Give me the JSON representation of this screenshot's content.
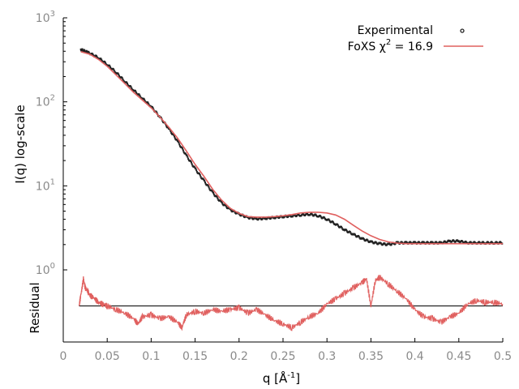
{
  "chart_data": {
    "type": "line",
    "panels": [
      {
        "name": "intensity",
        "ylabel": "I(q) log-scale",
        "yscale": "log",
        "ylim": [
          1,
          1000
        ],
        "yticks": [
          {
            "value": 1,
            "base": "10",
            "exp": "0"
          },
          {
            "value": 10,
            "base": "10",
            "exp": "1"
          },
          {
            "value": 100,
            "base": "10",
            "exp": "2"
          },
          {
            "value": 1000,
            "base": "10",
            "exp": "3"
          }
        ],
        "series": [
          {
            "name": "Experimental",
            "style": "points",
            "color": "#222222",
            "x": [
              0.02,
              0.025,
              0.03,
              0.04,
              0.05,
              0.06,
              0.07,
              0.08,
              0.09,
              0.1,
              0.11,
              0.12,
              0.13,
              0.14,
              0.15,
              0.16,
              0.17,
              0.18,
              0.19,
              0.2,
              0.21,
              0.22,
              0.23,
              0.24,
              0.25,
              0.26,
              0.27,
              0.28,
              0.29,
              0.3,
              0.31,
              0.32,
              0.33,
              0.34,
              0.35,
              0.36,
              0.37,
              0.38,
              0.39,
              0.4,
              0.41,
              0.42,
              0.43,
              0.44,
              0.45,
              0.46,
              0.47,
              0.48,
              0.49,
              0.5
            ],
            "y": [
              420,
              400,
              380,
              335,
              278,
              225,
              175,
              138,
              110,
              88,
              66,
              48,
              34,
              23,
              16,
              11.5,
              8.3,
              6.3,
              5.2,
              4.6,
              4.2,
              4.05,
              4.1,
              4.2,
              4.3,
              4.4,
              4.5,
              4.6,
              4.4,
              4.0,
              3.5,
              3.0,
              2.65,
              2.35,
              2.15,
              2.05,
              2.0,
              2.1,
              2.1,
              2.1,
              2.1,
              2.1,
              2.1,
              2.2,
              2.2,
              2.1,
              2.1,
              2.1,
              2.1,
              2.1
            ]
          },
          {
            "name": "FoXS χ² = 16.9",
            "legend_text": "FoXS χ",
            "legend_sup": "2",
            "legend_suffix": " = 16.9",
            "style": "line",
            "color": "#e0605f",
            "x": [
              0.02,
              0.03,
              0.04,
              0.05,
              0.06,
              0.07,
              0.08,
              0.09,
              0.1,
              0.11,
              0.12,
              0.13,
              0.14,
              0.15,
              0.16,
              0.17,
              0.18,
              0.19,
              0.2,
              0.21,
              0.22,
              0.23,
              0.24,
              0.25,
              0.26,
              0.27,
              0.28,
              0.29,
              0.3,
              0.31,
              0.32,
              0.33,
              0.34,
              0.35,
              0.36,
              0.37,
              0.38,
              0.39,
              0.4,
              0.42,
              0.45,
              0.48,
              0.5
            ],
            "y": [
              395,
              370,
              320,
              265,
              210,
              165,
              130,
              105,
              85,
              66,
              50,
              37,
              26,
              18,
              13,
              9.1,
              6.8,
              5.4,
              4.7,
              4.3,
              4.25,
              4.25,
              4.3,
              4.4,
              4.55,
              4.75,
              4.85,
              4.85,
              4.75,
              4.5,
              4.0,
              3.4,
              2.9,
              2.55,
              2.3,
              2.15,
              2.08,
              2.05,
              2.05,
              2.05,
              2.05,
              2.05,
              2.05
            ]
          }
        ]
      },
      {
        "name": "residual",
        "ylabel": "Residual",
        "ylim": [
          -1,
          1
        ],
        "baseline": 0,
        "series": [
          {
            "name": "Residual",
            "style": "line",
            "color": "#e0605f",
            "x": [
              0.018,
              0.02,
              0.023,
              0.025,
              0.028,
              0.03,
              0.035,
              0.04,
              0.045,
              0.05,
              0.06,
              0.07,
              0.08,
              0.085,
              0.09,
              0.1,
              0.11,
              0.12,
              0.13,
              0.135,
              0.14,
              0.15,
              0.16,
              0.17,
              0.18,
              0.19,
              0.2,
              0.21,
              0.22,
              0.23,
              0.24,
              0.25,
              0.26,
              0.27,
              0.28,
              0.29,
              0.3,
              0.31,
              0.32,
              0.33,
              0.34,
              0.345,
              0.35,
              0.355,
              0.36,
              0.37,
              0.38,
              0.39,
              0.4,
              0.41,
              0.42,
              0.43,
              0.44,
              0.45,
              0.46,
              0.47,
              0.48,
              0.49,
              0.5
            ],
            "y": [
              0.0,
              0.3,
              0.75,
              0.5,
              0.4,
              0.3,
              0.22,
              0.1,
              0.05,
              0.0,
              -0.1,
              -0.2,
              -0.35,
              -0.5,
              -0.3,
              -0.25,
              -0.35,
              -0.3,
              -0.45,
              -0.6,
              -0.25,
              -0.15,
              -0.2,
              -0.1,
              -0.15,
              -0.1,
              -0.05,
              -0.2,
              -0.1,
              -0.25,
              -0.4,
              -0.5,
              -0.6,
              -0.45,
              -0.3,
              -0.2,
              0.05,
              0.2,
              0.35,
              0.5,
              0.65,
              0.75,
              0.0,
              0.7,
              0.8,
              0.6,
              0.4,
              0.2,
              -0.1,
              -0.3,
              -0.35,
              -0.45,
              -0.3,
              -0.2,
              0.05,
              0.15,
              0.1,
              0.1,
              0.05
            ]
          }
        ]
      }
    ],
    "xlabel_prefix": "q [Å",
    "xlabel_sup": "-1",
    "xlabel_suffix": "]",
    "xlim": [
      0,
      0.5
    ],
    "xticks": [
      "0",
      "0.05",
      "0.1",
      "0.15",
      "0.2",
      "0.25",
      "0.3",
      "0.35",
      "0.4",
      "0.45",
      "0.5"
    ],
    "grid": false,
    "legend": "top-right"
  }
}
